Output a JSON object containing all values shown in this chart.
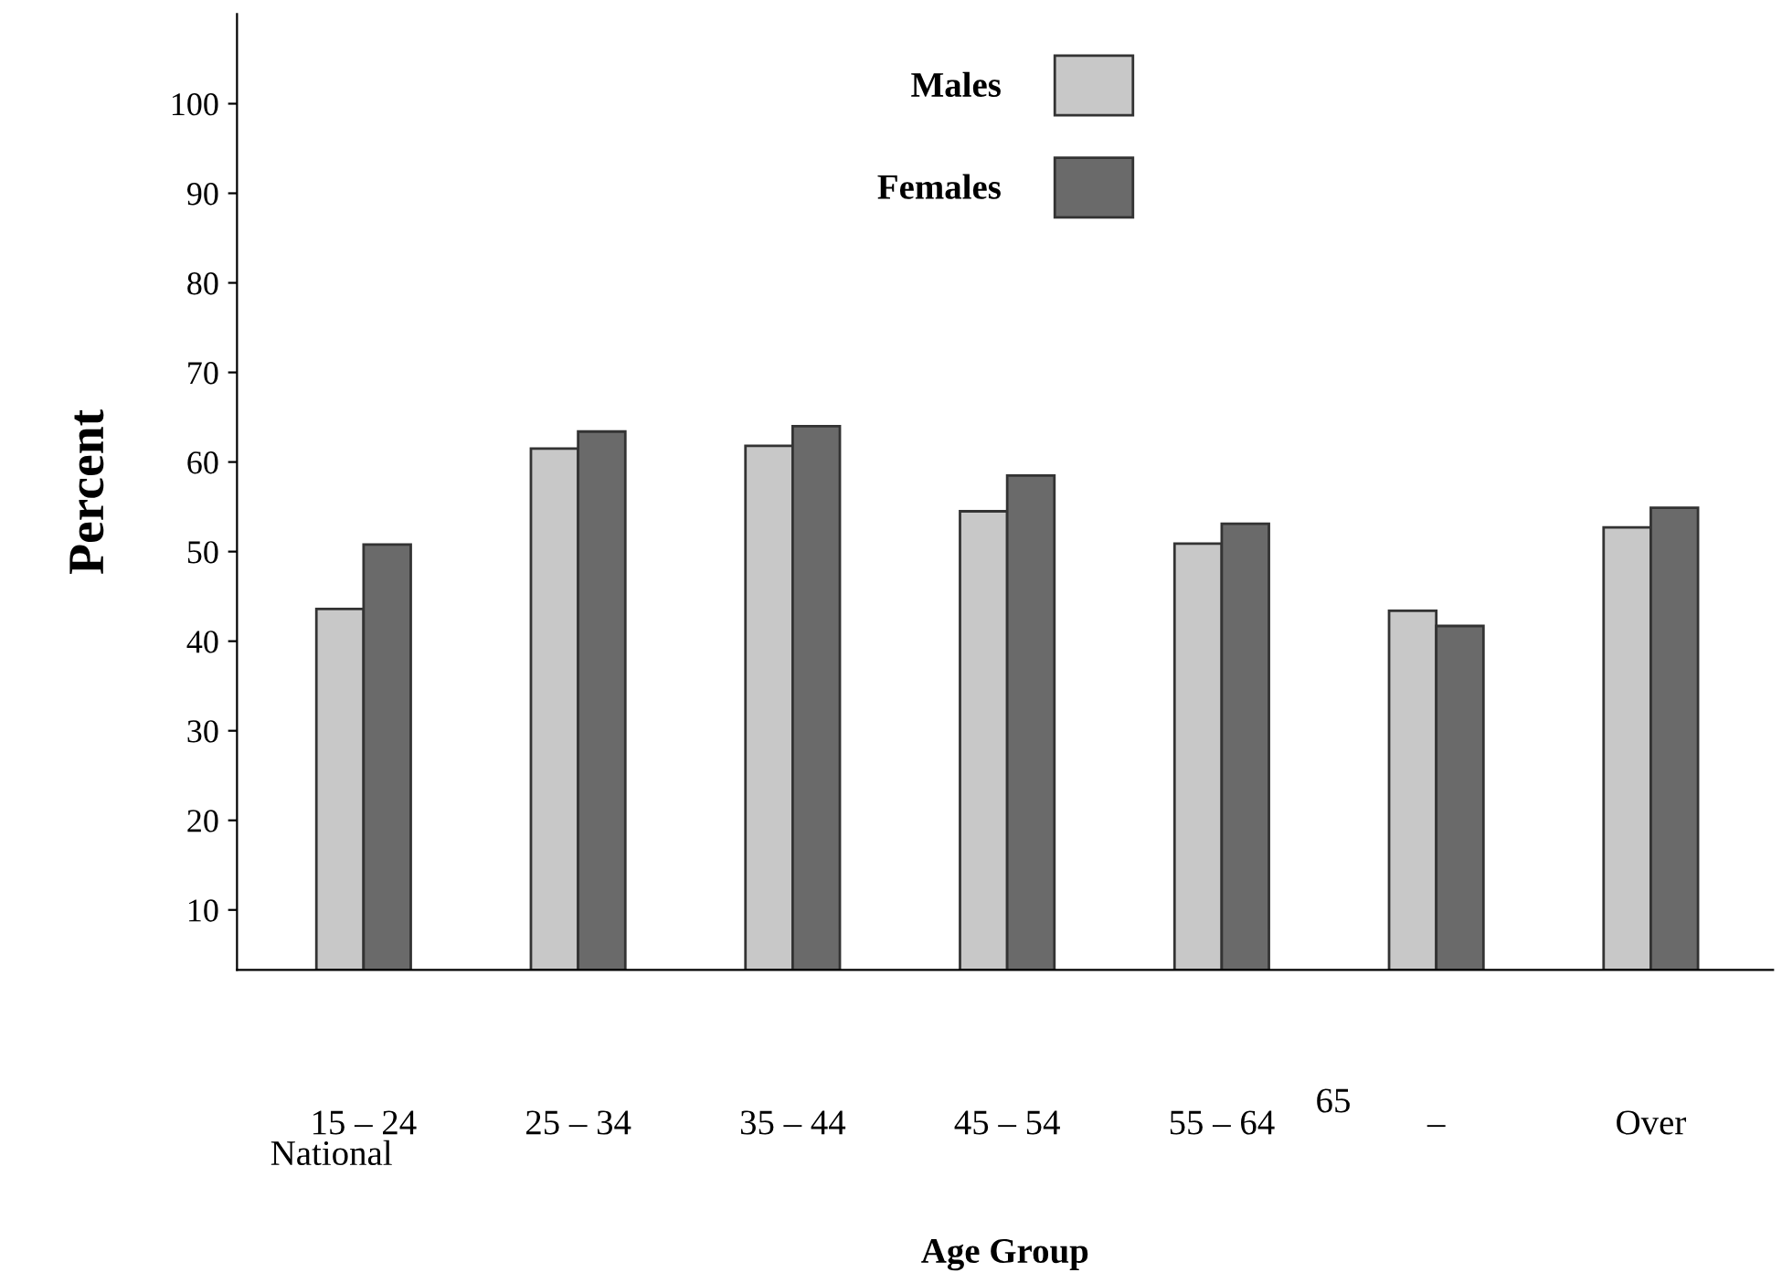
{
  "chart_data": {
    "type": "bar",
    "xlabel": "Age Group",
    "ylabel": "Percent",
    "categories": [
      "15 – 24",
      "25 – 34",
      "35 – 44",
      "45 – 54",
      "55 – 64",
      "–",
      "Over"
    ],
    "series": [
      {
        "name": "Males",
        "color": "#c8c8c8",
        "values": [
          43.6,
          61.5,
          61.8,
          54.5,
          50.9,
          43.4,
          52.7
        ]
      },
      {
        "name": "Females",
        "color": "#6a6a6a",
        "values": [
          50.8,
          63.4,
          64.0,
          58.5,
          53.1,
          41.7,
          54.9
        ]
      }
    ],
    "ylim": [
      3.3,
      110
    ],
    "yticks": [
      10,
      20,
      30,
      40,
      50,
      60,
      70,
      80,
      90,
      100
    ],
    "grid": false,
    "legend": "top",
    "annotations": [
      "65",
      "National"
    ]
  }
}
